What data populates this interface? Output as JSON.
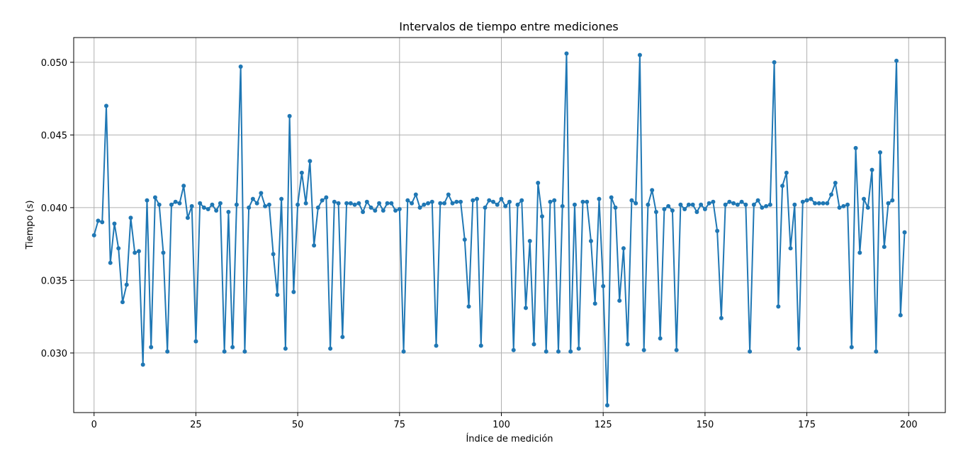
{
  "chart_data": {
    "type": "line",
    "title": "Intervalos de tiempo entre mediciones",
    "xlabel": "Índice de medición",
    "ylabel": "Tiempo (s)",
    "xlim": [
      -5,
      209
    ],
    "ylim": [
      0.0259,
      0.0517
    ],
    "xticks": [
      0,
      25,
      50,
      75,
      100,
      125,
      150,
      175,
      200
    ],
    "yticks": [
      0.03,
      0.035,
      0.04,
      0.045,
      0.05
    ],
    "xtick_labels": [
      "0",
      "25",
      "50",
      "75",
      "100",
      "125",
      "150",
      "175",
      "200"
    ],
    "ytick_labels": [
      "0.030",
      "0.035",
      "0.040",
      "0.045",
      "0.050"
    ],
    "grid": true,
    "marker": "circle",
    "color": "#1f77b4",
    "series": [
      {
        "values": [
          0.0381,
          0.0391,
          0.039,
          0.047,
          0.0362,
          0.0389,
          0.0372,
          0.0335,
          0.0347,
          0.0393,
          0.0369,
          0.037,
          0.0292,
          0.0405,
          0.0304,
          0.0407,
          0.0402,
          0.0369,
          0.0301,
          0.0402,
          0.0404,
          0.0403,
          0.0415,
          0.0393,
          0.0401,
          0.0308,
          0.0403,
          0.04,
          0.0399,
          0.0402,
          0.0398,
          0.0403,
          0.0301,
          0.0397,
          0.0304,
          0.0402,
          0.0497,
          0.0301,
          0.04,
          0.0406,
          0.0403,
          0.041,
          0.0401,
          0.0402,
          0.0368,
          0.034,
          0.0406,
          0.0303,
          0.0463,
          0.0342,
          0.0402,
          0.0424,
          0.0403,
          0.0432,
          0.0374,
          0.04,
          0.0405,
          0.0407,
          0.0303,
          0.0404,
          0.0403,
          0.0311,
          0.0403,
          0.0403,
          0.0402,
          0.0403,
          0.0397,
          0.0404,
          0.04,
          0.0398,
          0.0403,
          0.0398,
          0.0403,
          0.0403,
          0.0398,
          0.0399,
          0.0301,
          0.0405,
          0.0403,
          0.0409,
          0.04,
          0.0402,
          0.0403,
          0.0404,
          0.0305,
          0.0403,
          0.0403,
          0.0409,
          0.0403,
          0.0404,
          0.0404,
          0.0378,
          0.0332,
          0.0405,
          0.0406,
          0.0305,
          0.04,
          0.0405,
          0.0404,
          0.0402,
          0.0406,
          0.0401,
          0.0404,
          0.0302,
          0.0402,
          0.0405,
          0.0331,
          0.0377,
          0.0306,
          0.0417,
          0.0394,
          0.0301,
          0.0404,
          0.0405,
          0.0301,
          0.0401,
          0.0506,
          0.0301,
          0.0402,
          0.0303,
          0.0404,
          0.0404,
          0.0377,
          0.0334,
          0.0406,
          0.0346,
          0.0264,
          0.0407,
          0.04,
          0.0336,
          0.0372,
          0.0306,
          0.0405,
          0.0403,
          0.0505,
          0.0302,
          0.0402,
          0.0412,
          0.0397,
          0.031,
          0.0399,
          0.0401,
          0.0398,
          0.0302,
          0.0402,
          0.0399,
          0.0402,
          0.0402,
          0.0397,
          0.0402,
          0.0399,
          0.0403,
          0.0404,
          0.0384,
          0.0324,
          0.0402,
          0.0404,
          0.0403,
          0.0402,
          0.0404,
          0.0402,
          0.0301,
          0.0402,
          0.0405,
          0.04,
          0.0401,
          0.0402,
          0.05,
          0.0332,
          0.0415,
          0.0424,
          0.0372,
          0.0402,
          0.0303,
          0.0404,
          0.0405,
          0.0406,
          0.0403,
          0.0403,
          0.0403,
          0.0403,
          0.0409,
          0.0417,
          0.04,
          0.0401,
          0.0402,
          0.0304,
          0.0441,
          0.0369,
          0.0406,
          0.04,
          0.0426,
          0.0301,
          0.0438,
          0.0373,
          0.0403,
          0.0405,
          0.0501,
          0.0326,
          0.0383
        ]
      }
    ]
  }
}
